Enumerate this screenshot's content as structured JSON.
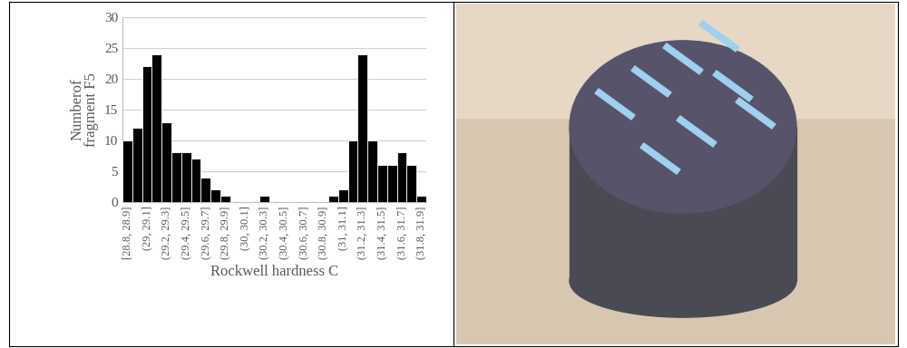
{
  "chart_data": {
    "type": "bar",
    "x_label": "Rockwell hardness C",
    "y_label": "Numberof\nfragment F5",
    "categories": [
      "[28.8, 28.9]",
      null,
      "(29, 29.1]",
      null,
      "(29.2, 29.3]",
      null,
      "(29.4, 29.5]",
      null,
      "(29.6, 29.7]",
      null,
      "(29.8, 29.9]",
      null,
      "(30, 30.1]",
      null,
      "(30.2, 30.3]",
      null,
      "(30.4, 30.5]",
      null,
      "(30.6, 30.7]",
      null,
      "(30.8, 30.9]",
      null,
      "(31, 31.1]",
      null,
      "(31.2, 31.3]",
      null,
      "(31.4, 31.5]",
      null,
      "(31.6, 31.7]",
      null,
      "(31.8, 31.9]"
    ],
    "values": [
      10,
      12,
      22,
      24,
      13,
      8,
      8,
      7,
      4,
      2,
      1,
      0,
      0,
      0,
      1,
      0,
      0,
      0,
      0,
      0,
      0,
      1,
      2,
      10,
      24,
      10,
      6,
      6,
      8,
      6,
      1
    ],
    "color": "#000000",
    "ylim": [
      0,
      30
    ],
    "yticks": [
      0,
      5,
      10,
      15,
      20,
      25,
      30
    ],
    "grid": true
  }
}
